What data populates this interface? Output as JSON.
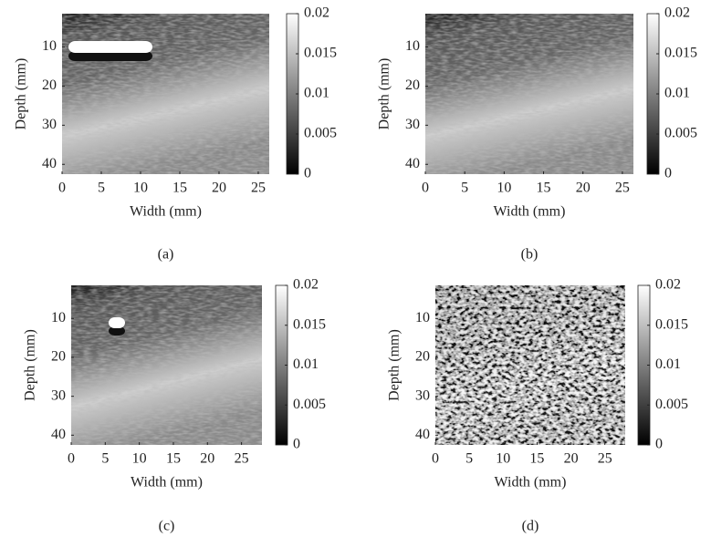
{
  "chart_data": [
    {
      "type": "image",
      "caption": "(a)",
      "xlabel": "Width (mm)",
      "ylabel": "Depth (mm)",
      "xlim": [
        0,
        26.4
      ],
      "xticks": [
        0,
        5,
        10,
        15,
        20,
        25
      ],
      "ylim": [
        42.5,
        1.5
      ],
      "yticks": [
        10,
        20,
        30,
        40
      ],
      "clim": [
        0,
        0.02
      ],
      "cticks": [
        0,
        0.005,
        0.01,
        0.015,
        0.02
      ],
      "colormap": [
        "#000000",
        "#ffffff"
      ]
    },
    {
      "type": "image",
      "caption": "(b)",
      "xlabel": "Width (mm)",
      "ylabel": "Depth (mm)",
      "xlim": [
        0,
        26.4
      ],
      "xticks": [
        0,
        5,
        10,
        15,
        20,
        25
      ],
      "ylim": [
        42.5,
        1.5
      ],
      "yticks": [
        10,
        20,
        30,
        40
      ],
      "clim": [
        0,
        0.02
      ],
      "cticks": [
        0,
        0.005,
        0.01,
        0.015,
        0.02
      ],
      "colormap": [
        "#000000",
        "#ffffff"
      ]
    },
    {
      "type": "image",
      "caption": "(c)",
      "xlabel": "Width (mm)",
      "ylabel": "Depth (mm)",
      "xlim": [
        0,
        28
      ],
      "xticks": [
        0,
        5,
        10,
        15,
        20,
        25
      ],
      "ylim": [
        42.5,
        1.5
      ],
      "yticks": [
        10,
        20,
        30,
        40
      ],
      "clim": [
        0,
        0.02
      ],
      "cticks": [
        0,
        0.005,
        0.01,
        0.015,
        0.02
      ],
      "colormap": [
        "#000000",
        "#ffffff"
      ]
    },
    {
      "type": "image",
      "caption": "(d)",
      "xlabel": "Width (mm)",
      "ylabel": "Depth (mm)",
      "xlim": [
        0,
        28
      ],
      "xticks": [
        0,
        5,
        10,
        15,
        20,
        25
      ],
      "ylim": [
        42.5,
        1.5
      ],
      "yticks": [
        10,
        20,
        30,
        40
      ],
      "clim": [
        0,
        0.02
      ],
      "cticks": [
        0,
        0.005,
        0.01,
        0.015,
        0.02
      ],
      "colormap": [
        "#000000",
        "#ffffff"
      ]
    }
  ]
}
